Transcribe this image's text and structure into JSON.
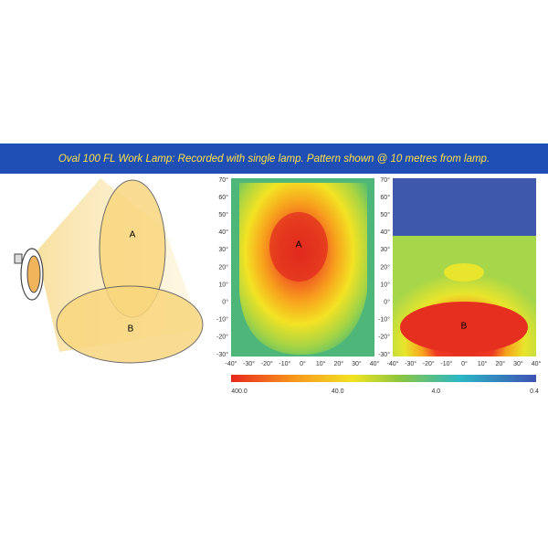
{
  "header": {
    "title": "Oval 100 FL Work Lamp:  Recorded with single lamp. Pattern shown @ 10 metres from lamp."
  },
  "diagram": {
    "beam_a": "A",
    "beam_b": "B"
  },
  "plots": [
    {
      "label": "A"
    },
    {
      "label": "B"
    }
  ],
  "y_ticks": [
    "70°",
    "60°",
    "50°",
    "40°",
    "30°",
    "20°",
    "10°",
    "0°",
    "-10°",
    "-20°",
    "-30°"
  ],
  "x_ticks": [
    "-40°",
    "-30°",
    "-20°",
    "-10°",
    "0°",
    "10°",
    "20°",
    "30°",
    "40°"
  ],
  "color_scale": [
    "400.0",
    "40.0",
    "4.0",
    "0.4"
  ]
}
